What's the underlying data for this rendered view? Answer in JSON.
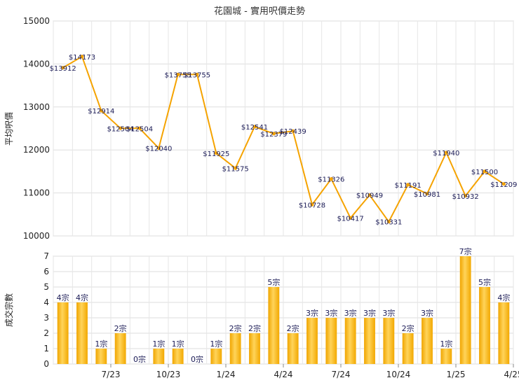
{
  "chart_data": [
    {
      "type": "line",
      "title": "花園城 - 實用呎價走勢",
      "ylabel": "平均呎價",
      "ylim": [
        10000,
        15000
      ],
      "yticks": [
        "10000",
        "11000",
        "12000",
        "13000",
        "14000",
        "15000"
      ],
      "grid": true,
      "color": "#f5a300",
      "values": [
        13912,
        14173,
        12914,
        12504,
        12504,
        12040,
        13755,
        13755,
        11925,
        11575,
        12541,
        12379,
        12439,
        10728,
        11326,
        10417,
        10949,
        10331,
        11191,
        10981,
        11940,
        10932,
        11500,
        11209
      ],
      "labels": [
        "$13912",
        "$14173",
        "$12914",
        "$12504",
        "$12504",
        "$12040",
        "$13755",
        "$13755",
        "$11925",
        "$11575",
        "$12541",
        "$12379",
        "$12439",
        "$10728",
        "$11326",
        "$10417",
        "$10949",
        "$10331",
        "$11191",
        "$10981",
        "$11940",
        "$10932",
        "$11500",
        "$11209"
      ]
    },
    {
      "type": "bar",
      "ylabel": "成交宗數",
      "ylim": [
        0,
        7
      ],
      "yticks": [
        "0",
        "1",
        "2",
        "3",
        "4",
        "5",
        "6",
        "7"
      ],
      "grid": true,
      "color": "#f5a300",
      "values": [
        4,
        4,
        1,
        2,
        0,
        1,
        1,
        0,
        1,
        2,
        2,
        5,
        2,
        3,
        3,
        3,
        3,
        3,
        2,
        3,
        1,
        7,
        5,
        4
      ],
      "labels": [
        "4宗",
        "4宗",
        "1宗",
        "2宗",
        "0宗",
        "1宗",
        "1宗",
        "0宗",
        "1宗",
        "2宗",
        "2宗",
        "5宗",
        "2宗",
        "3宗",
        "3宗",
        "3宗",
        "3宗",
        "3宗",
        "2宗",
        "3宗",
        "1宗",
        "7宗",
        "5宗",
        "4宗"
      ],
      "xticks": [
        "7/23",
        "10/23",
        "1/24",
        "4/24",
        "7/24",
        "10/24",
        "1/25",
        "4/25"
      ]
    }
  ]
}
